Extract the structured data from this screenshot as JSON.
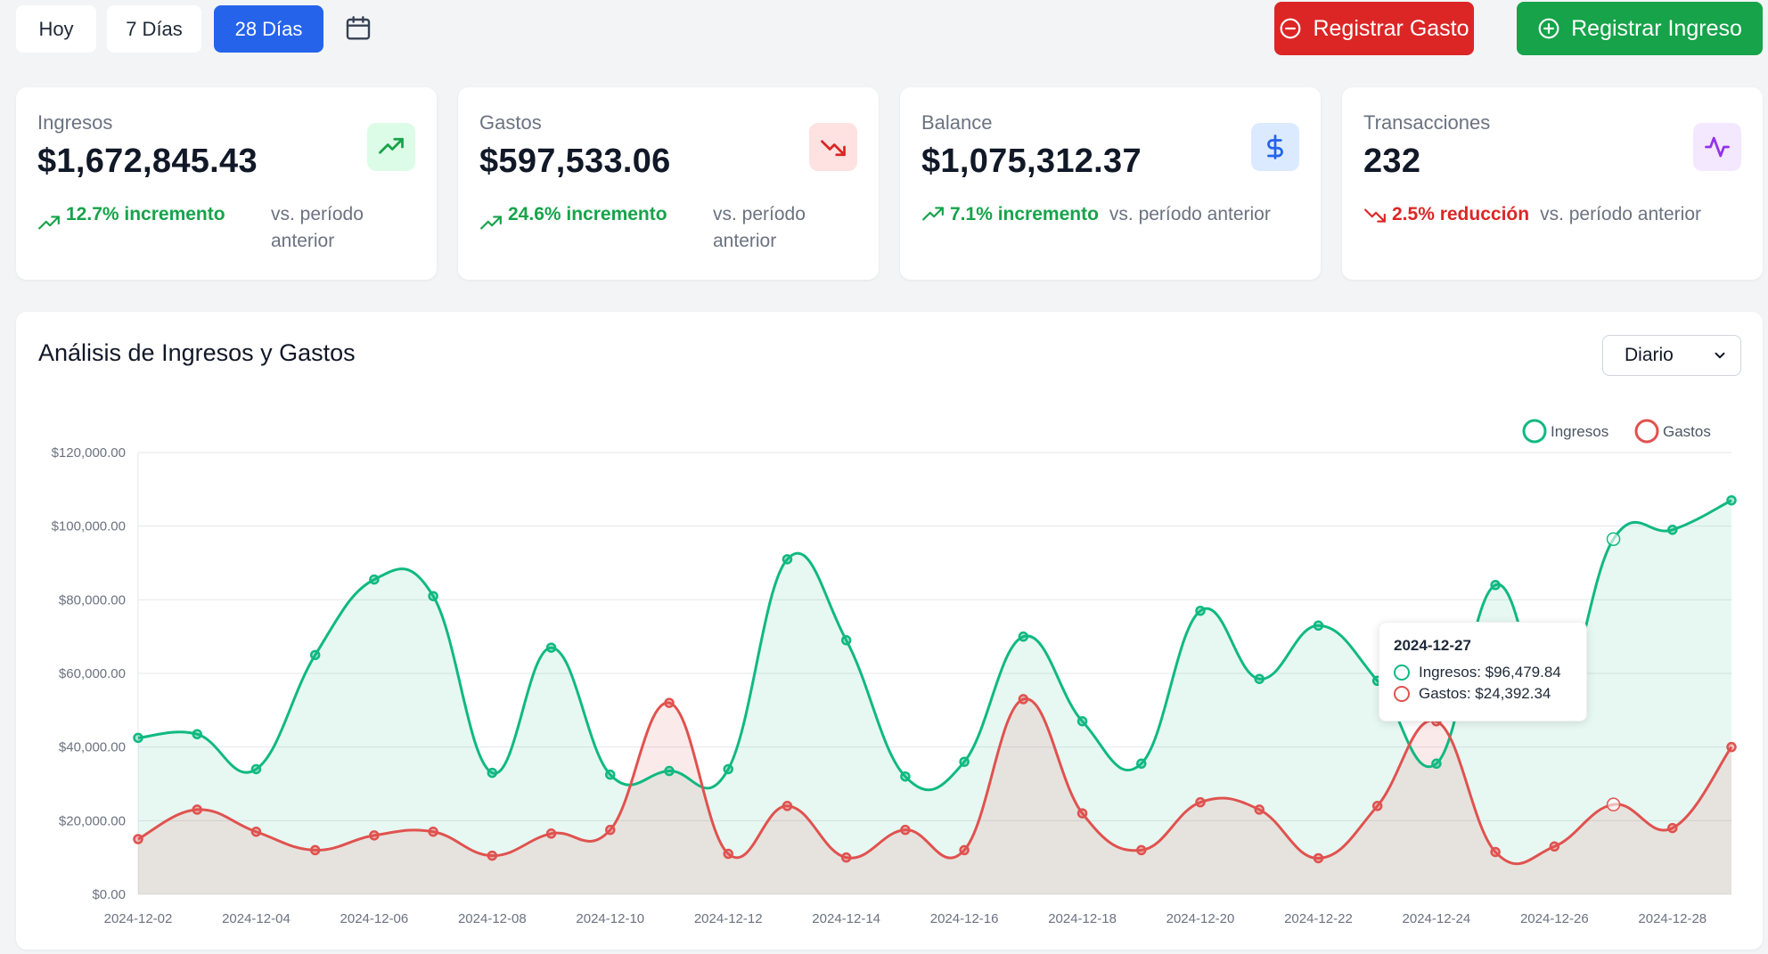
{
  "toolbar": {
    "periods": [
      {
        "label": "Hoy",
        "active": false
      },
      {
        "label": "7 Días",
        "active": false
      },
      {
        "label": "28 Días",
        "active": true
      }
    ],
    "calendar_icon": "calendar-icon",
    "register_expense_label": "Registrar Gasto",
    "register_income_label": "Registrar Ingreso"
  },
  "cards": [
    {
      "label": "Ingresos",
      "value": "$1,672,845.43",
      "icon": "trending-up-icon",
      "trend_dir": "up",
      "trend_text": "12.7% incremento",
      "vs_text": "vs. período anterior",
      "icon_bg": "#dcfce7",
      "icon_color": "#16a34a"
    },
    {
      "label": "Gastos",
      "value": "$597,533.06",
      "icon": "trending-down-icon",
      "trend_dir": "up",
      "trend_text": "24.6% incremento",
      "vs_text": "vs. período anterior",
      "icon_bg": "#fee2e2",
      "icon_color": "#dc2626"
    },
    {
      "label": "Balance",
      "value": "$1,075,312.37",
      "icon": "dollar-icon",
      "trend_dir": "up",
      "trend_text": "7.1% incremento",
      "vs_text": "vs. período anterior",
      "icon_bg": "#dbeafe",
      "icon_color": "#2563eb"
    },
    {
      "label": "Transacciones",
      "value": "232",
      "icon": "activity-icon",
      "trend_dir": "down",
      "trend_text": "2.5% reducción",
      "vs_text": "vs. período anterior",
      "icon_bg": "#f3e8ff",
      "icon_color": "#9333ea"
    }
  ],
  "panel": {
    "title": "Análisis de Ingresos y Gastos",
    "granularity": "Diario"
  },
  "colors": {
    "income": "#10b981",
    "expense": "#e0524f",
    "income_fill": "rgba(16,185,129,0.10)",
    "expense_fill": "rgba(224,82,79,0.12)"
  },
  "chart_data": {
    "type": "area",
    "x": [
      "2024-12-02",
      "2024-12-03",
      "2024-12-04",
      "2024-12-05",
      "2024-12-06",
      "2024-12-07",
      "2024-12-08",
      "2024-12-09",
      "2024-12-10",
      "2024-12-11",
      "2024-12-12",
      "2024-12-13",
      "2024-12-14",
      "2024-12-15",
      "2024-12-16",
      "2024-12-17",
      "2024-12-18",
      "2024-12-19",
      "2024-12-20",
      "2024-12-21",
      "2024-12-22",
      "2024-12-23",
      "2024-12-24",
      "2024-12-25",
      "2024-12-26",
      "2024-12-27",
      "2024-12-28",
      "2024-12-29"
    ],
    "x_tick_labels": [
      "2024-12-02",
      "2024-12-04",
      "2024-12-06",
      "2024-12-08",
      "2024-12-10",
      "2024-12-12",
      "2024-12-14",
      "2024-12-16",
      "2024-12-18",
      "2024-12-20",
      "2024-12-22",
      "2024-12-24",
      "2024-12-26",
      "2024-12-28"
    ],
    "series": [
      {
        "name": "Ingresos",
        "values": [
          42500,
          43500,
          34000,
          65000,
          85500,
          81000,
          33000,
          67000,
          32500,
          33500,
          34000,
          91000,
          69000,
          32000,
          36000,
          70000,
          47000,
          35500,
          77000,
          58500,
          73000,
          58000,
          35500,
          84000,
          50000,
          96479.84,
          99000,
          107000
        ]
      },
      {
        "name": "Gastos",
        "values": [
          15000,
          23000,
          17000,
          12000,
          16000,
          17000,
          10500,
          16500,
          17500,
          52000,
          11000,
          24000,
          10000,
          17500,
          12000,
          53000,
          22000,
          12000,
          25000,
          23000,
          9800,
          24000,
          47000,
          11500,
          13000,
          24392.34,
          18000,
          40000
        ]
      }
    ],
    "ylim": [
      0,
      120000
    ],
    "y_ticks": [
      {
        "value": 0,
        "label": "$0.00"
      },
      {
        "value": 20000,
        "label": "$20,000.00"
      },
      {
        "value": 40000,
        "label": "$40,000.00"
      },
      {
        "value": 60000,
        "label": "$60,000.00"
      },
      {
        "value": 80000,
        "label": "$80,000.00"
      },
      {
        "value": 100000,
        "label": "$100,000.00"
      },
      {
        "value": 120000,
        "label": "$120,000.00"
      }
    ],
    "grid": true,
    "legend": "top-right",
    "highlight_index": 25
  },
  "tooltip": {
    "date": "2024-12-27",
    "income_text": "Ingresos: $96,479.84",
    "expense_text": "Gastos: $24,392.34"
  }
}
